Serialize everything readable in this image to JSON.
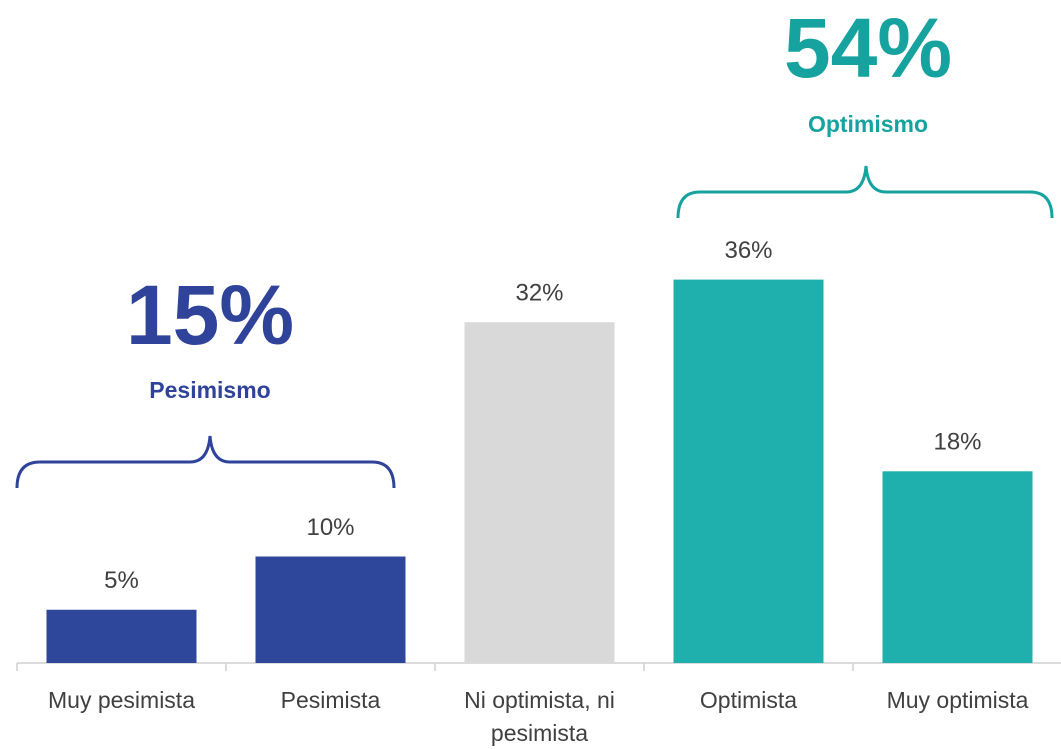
{
  "chart_data": {
    "type": "bar",
    "categories": [
      "Muy pesimista",
      "Pesimista",
      "Ni optimista, ni pesimista",
      "Optimista",
      "Muy optimista"
    ],
    "values": [
      5,
      10,
      32,
      36,
      18
    ],
    "value_labels": [
      "5%",
      "10%",
      "32%",
      "36%",
      "18%"
    ],
    "colors": [
      "#2f479b",
      "#2f479b",
      "#d9d9d9",
      "#1fb0ae",
      "#1fb0ae"
    ],
    "annotations": [
      {
        "text": "15%",
        "label": "Pesimismo",
        "color": "#2e4399"
      },
      {
        "text": "54%",
        "label": "Optimismo",
        "color": "#16a39f"
      }
    ]
  }
}
